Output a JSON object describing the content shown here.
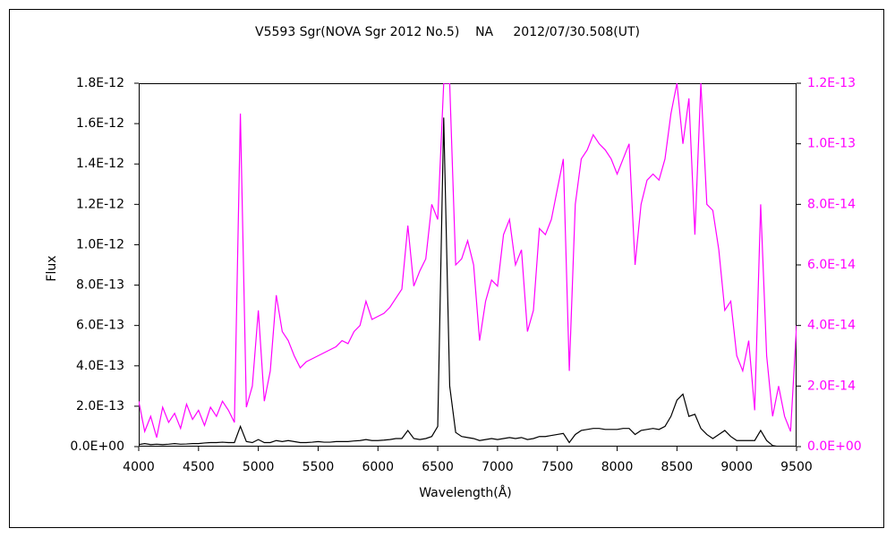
{
  "chart_data": {
    "type": "line",
    "title": "V5593 Sgr(NOVA Sgr 2012 No.5)    NA     2012/07/30.508(UT)",
    "x_label": "Wavelength(Å)",
    "y_label": "Flux",
    "x": [
      4000,
      4050,
      4100,
      4150,
      4200,
      4250,
      4300,
      4350,
      4400,
      4450,
      4500,
      4550,
      4600,
      4650,
      4700,
      4750,
      4800,
      4850,
      4900,
      4950,
      5000,
      5050,
      5100,
      5150,
      5200,
      5250,
      5300,
      5350,
      5400,
      5450,
      5500,
      5550,
      5600,
      5650,
      5700,
      5750,
      5800,
      5850,
      5900,
      5950,
      6000,
      6050,
      6100,
      6150,
      6200,
      6250,
      6300,
      6350,
      6400,
      6450,
      6500,
      6550,
      6600,
      6650,
      6700,
      6750,
      6800,
      6850,
      6900,
      6950,
      7000,
      7050,
      7100,
      7150,
      7200,
      7250,
      7300,
      7350,
      7400,
      7450,
      7500,
      7550,
      7600,
      7650,
      7700,
      7750,
      7800,
      7850,
      7900,
      7950,
      8000,
      8050,
      8100,
      8150,
      8200,
      8250,
      8300,
      8350,
      8400,
      8450,
      8500,
      8550,
      8600,
      8650,
      8700,
      8750,
      8800,
      8850,
      8900,
      8950,
      9000,
      9050,
      9100,
      9150,
      9200,
      9250,
      9300,
      9350,
      9400,
      9450,
      9500
    ],
    "series": [
      {
        "color": "#000000",
        "values": [
          1e-14,
          1.5e-14,
          1e-14,
          1.2e-14,
          1e-14,
          1.2e-14,
          1.5e-14,
          1.2e-14,
          1.3e-14,
          1.5e-14,
          1.5e-14,
          1.8e-14,
          2e-14,
          2e-14,
          2.2e-14,
          2e-14,
          2e-14,
          1e-13,
          2.5e-14,
          2e-14,
          3.5e-14,
          2e-14,
          2e-14,
          3e-14,
          2.5e-14,
          3e-14,
          2.5e-14,
          2e-14,
          2e-14,
          2.2e-14,
          2.5e-14,
          2.2e-14,
          2.2e-14,
          2.5e-14,
          2.5e-14,
          2.5e-14,
          2.8e-14,
          3e-14,
          3.5e-14,
          3e-14,
          3e-14,
          3.2e-14,
          3.5e-14,
          4e-14,
          4e-14,
          8e-14,
          4e-14,
          3.5e-14,
          4e-14,
          5e-14,
          1e-13,
          1.63e-12,
          3e-13,
          7e-14,
          5e-14,
          4.5e-14,
          4e-14,
          3e-14,
          3.5e-14,
          4e-14,
          3.5e-14,
          4e-14,
          4.5e-14,
          4e-14,
          4.5e-14,
          3.5e-14,
          4e-14,
          5e-14,
          5e-14,
          5.5e-14,
          6e-14,
          6.5e-14,
          2e-14,
          6e-14,
          8e-14,
          8.5e-14,
          9e-14,
          9e-14,
          8.5e-14,
          8.5e-14,
          8.5e-14,
          9e-14,
          9e-14,
          6e-14,
          8e-14,
          8.5e-14,
          9e-14,
          8.5e-14,
          1e-13,
          1.5e-13,
          2.3e-13,
          2.6e-13,
          1.5e-13,
          1.6e-13,
          9e-14,
          6e-14,
          4e-14,
          6e-14,
          8e-14,
          5e-14,
          3e-14,
          3e-14,
          3e-14,
          3e-14,
          8e-14,
          3e-14,
          5e-15,
          0,
          0,
          0,
          0
        ]
      },
      {
        "color": "#ff00ff",
        "axis": "y2",
        "values": [
          1.5e-14,
          5e-15,
          1e-14,
          3e-15,
          1.3e-14,
          8e-15,
          1.1e-14,
          6e-15,
          1.4e-14,
          9e-15,
          1.2e-14,
          7e-15,
          1.3e-14,
          1e-14,
          1.5e-14,
          1.2e-14,
          8e-15,
          1.1e-13,
          1.3e-14,
          2e-14,
          4.5e-14,
          1.5e-14,
          2.5e-14,
          5e-14,
          3.8e-14,
          3.5e-14,
          3e-14,
          2.6e-14,
          2.8e-14,
          2.9e-14,
          3e-14,
          3.1e-14,
          3.2e-14,
          3.3e-14,
          3.5e-14,
          3.4e-14,
          3.8e-14,
          4e-14,
          4.8e-14,
          4.2e-14,
          4.3e-14,
          4.4e-14,
          4.6e-14,
          4.9e-14,
          5.2e-14,
          7.3e-14,
          5.3e-14,
          5.8e-14,
          6.2e-14,
          8e-14,
          7.5e-14,
          1.2e-13,
          1.2e-13,
          6e-14,
          6.2e-14,
          6.8e-14,
          6e-14,
          3.5e-14,
          4.8e-14,
          5.5e-14,
          5.3e-14,
          7e-14,
          7.5e-14,
          6e-14,
          6.5e-14,
          3.8e-14,
          4.5e-14,
          7.2e-14,
          7e-14,
          7.5e-14,
          8.5e-14,
          9.5e-14,
          2.5e-14,
          8e-14,
          9.5e-14,
          9.8e-14,
          1.03e-13,
          1e-13,
          9.8e-14,
          9.5e-14,
          9e-14,
          9.5e-14,
          1e-13,
          6e-14,
          8e-14,
          8.8e-14,
          9e-14,
          8.8e-14,
          9.5e-14,
          1.1e-13,
          1.2e-13,
          1e-13,
          1.15e-13,
          7e-14,
          1.2e-13,
          8e-14,
          7.8e-14,
          6.5e-14,
          4.5e-14,
          4.8e-14,
          3e-14,
          2.5e-14,
          3.5e-14,
          1.2e-14,
          8e-14,
          3e-14,
          1e-14,
          2e-14,
          1e-14,
          5e-15,
          4e-14
        ]
      }
    ],
    "xlim": [
      4000,
      9500
    ],
    "xticks": [
      4000,
      4500,
      5000,
      5500,
      6000,
      6500,
      7000,
      7500,
      8000,
      8500,
      9000,
      9500
    ],
    "ylim": [
      0,
      1.8e-12
    ],
    "yticks": [
      {
        "value": 0,
        "label": "0.0E+00"
      },
      {
        "value": 2e-13,
        "label": "2.0E-13"
      },
      {
        "value": 4e-13,
        "label": "4.0E-13"
      },
      {
        "value": 6e-13,
        "label": "6.0E-13"
      },
      {
        "value": 8e-13,
        "label": "8.0E-13"
      },
      {
        "value": 1e-12,
        "label": "1.0E-12"
      },
      {
        "value": 1.2e-12,
        "label": "1.2E-12"
      },
      {
        "value": 1.4e-12,
        "label": "1.4E-12"
      },
      {
        "value": 1.6e-12,
        "label": "1.6E-12"
      },
      {
        "value": 1.8e-12,
        "label": "1.8E-12"
      }
    ],
    "y2lim": [
      0,
      1.2e-13
    ],
    "y2ticks": [
      {
        "value": 0,
        "label": "0.0E+00"
      },
      {
        "value": 2e-14,
        "label": "2.0E-14"
      },
      {
        "value": 4e-14,
        "label": "4.0E-14"
      },
      {
        "value": 6e-14,
        "label": "6.0E-14"
      },
      {
        "value": 8e-14,
        "label": "8.0E-14"
      },
      {
        "value": 1e-13,
        "label": "1.0E-13"
      },
      {
        "value": 1.2e-13,
        "label": "1.2E-13"
      }
    ],
    "grid": false
  }
}
